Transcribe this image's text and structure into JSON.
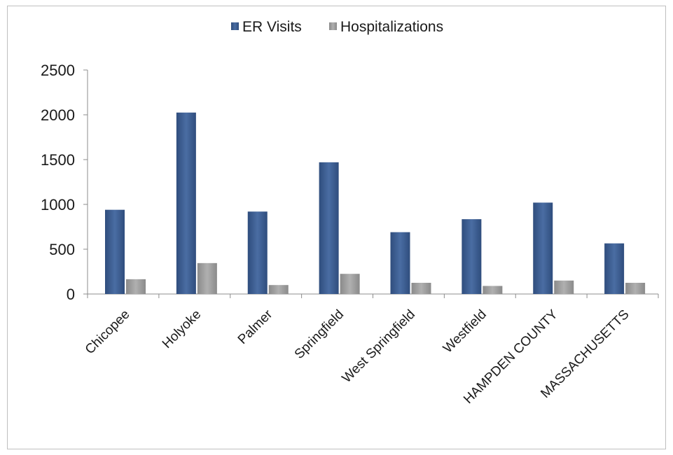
{
  "chart_data": {
    "type": "bar",
    "categories": [
      "Chicopee",
      "Holyoke",
      "Palmer",
      "Springfield",
      "West Springfield",
      "Westfield",
      "HAMPDEN COUNTY",
      "MASSACHUSETTS"
    ],
    "series": [
      {
        "name": "ER Visits",
        "color": "#3a5a8c",
        "values": [
          940,
          2025,
          920,
          1470,
          690,
          835,
          1020,
          565
        ]
      },
      {
        "name": "Hospitalizations",
        "color": "#9b9b9b",
        "values": [
          165,
          345,
          100,
          225,
          125,
          90,
          150,
          125
        ]
      }
    ],
    "yticks": [
      0,
      500,
      1000,
      1500,
      2000,
      2500
    ],
    "ylim": [
      0,
      2500
    ],
    "grid": false,
    "legend_position": "top"
  }
}
